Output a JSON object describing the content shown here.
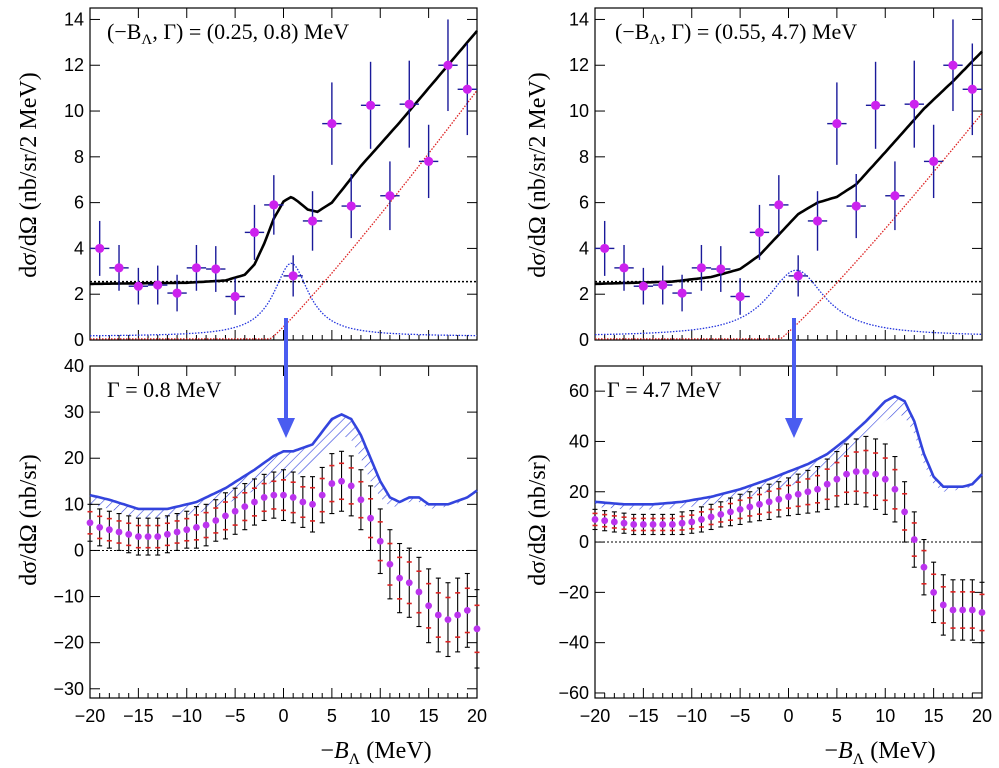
{
  "colors": {
    "data_point": "#cc22ee",
    "data_error": "#1a1a9a",
    "total_fit": "#000000",
    "background": "#000000",
    "peak": "#2233dd",
    "rising": "#dd2222",
    "hatch": "#3344dd",
    "arrow": "#4a5cf0",
    "subtracted_point": "#bb33ee",
    "subtracted_error": "#000000",
    "subtracted_band": "#dd2222"
  },
  "xlabel": {
    "prefix": "−",
    "var": "B",
    "sub": "Λ",
    "unit": " (MeV)"
  },
  "ylabel_top": "dσ/dΩ (nb/sr/2 MeV)",
  "ylabel_bottom": "dσ/dΩ (nb/sr)",
  "chart_data": [
    {
      "id": "top-left",
      "type": "scatter",
      "annotation": {
        "open": "(−B",
        "sub": "Λ",
        "close": ", Γ) = (0.25, 0.8) MeV"
      },
      "xlim": [
        -20,
        20
      ],
      "ylim": [
        0,
        14.5
      ],
      "xticks": [
        -20,
        -15,
        -10,
        -5,
        0,
        5,
        10,
        15,
        20
      ],
      "yticks": [
        0,
        2,
        4,
        6,
        8,
        10,
        12,
        14
      ],
      "points": [
        {
          "x": -19,
          "y": 4.0,
          "err": 1.2
        },
        {
          "x": -17,
          "y": 3.15,
          "err": 1.0
        },
        {
          "x": -15,
          "y": 2.35,
          "err": 0.8
        },
        {
          "x": -13,
          "y": 2.4,
          "err": 0.85
        },
        {
          "x": -11,
          "y": 2.05,
          "err": 0.8
        },
        {
          "x": -9,
          "y": 3.15,
          "err": 1.0
        },
        {
          "x": -7,
          "y": 3.1,
          "err": 1.0
        },
        {
          "x": -5,
          "y": 1.9,
          "err": 0.8
        },
        {
          "x": -3,
          "y": 4.7,
          "err": 1.2
        },
        {
          "x": -1,
          "y": 5.9,
          "err": 1.3
        },
        {
          "x": 1,
          "y": 2.8,
          "err": 0.9
        },
        {
          "x": 3,
          "y": 5.2,
          "err": 1.3
        },
        {
          "x": 5,
          "y": 9.45,
          "err": 1.8
        },
        {
          "x": 7,
          "y": 5.85,
          "err": 1.4
        },
        {
          "x": 9,
          "y": 10.25,
          "err": 1.9
        },
        {
          "x": 11,
          "y": 6.3,
          "err": 1.5
        },
        {
          "x": 13,
          "y": 10.3,
          "err": 1.9
        },
        {
          "x": 15,
          "y": 7.8,
          "err": 1.6
        },
        {
          "x": 17,
          "y": 12.0,
          "err": 2.0
        },
        {
          "x": 19,
          "y": 10.95,
          "err": 2.0
        }
      ],
      "background": 2.55,
      "peak": {
        "center": 0.8,
        "amplitude": 3.2,
        "width": 2.2
      },
      "rising": {
        "start": -1.5,
        "end_value": 10.9
      },
      "total_curve": [
        [
          -20,
          2.45
        ],
        [
          -10,
          2.5
        ],
        [
          -6,
          2.6
        ],
        [
          -4,
          2.85
        ],
        [
          -3,
          3.3
        ],
        [
          -2,
          4.2
        ],
        [
          -1,
          5.3
        ],
        [
          0,
          6.05
        ],
        [
          0.8,
          6.25
        ],
        [
          1.5,
          6.05
        ],
        [
          2.5,
          5.7
        ],
        [
          3.5,
          5.6
        ],
        [
          5,
          6.0
        ],
        [
          8,
          7.6
        ],
        [
          12,
          9.5
        ],
        [
          16,
          11.5
        ],
        [
          20,
          13.5
        ]
      ]
    },
    {
      "id": "top-right",
      "type": "scatter",
      "annotation": {
        "open": "(−B",
        "sub": "Λ",
        "close": ", Γ) = (0.55, 4.7) MeV"
      },
      "xlim": [
        -20,
        20
      ],
      "ylim": [
        0,
        14.5
      ],
      "xticks": [
        -20,
        -15,
        -10,
        -5,
        0,
        5,
        10,
        15,
        20
      ],
      "yticks": [
        0,
        2,
        4,
        6,
        8,
        10,
        12,
        14
      ],
      "points": [
        {
          "x": -19,
          "y": 4.0,
          "err": 1.2
        },
        {
          "x": -17,
          "y": 3.15,
          "err": 1.0
        },
        {
          "x": -15,
          "y": 2.35,
          "err": 0.8
        },
        {
          "x": -13,
          "y": 2.4,
          "err": 0.85
        },
        {
          "x": -11,
          "y": 2.05,
          "err": 0.8
        },
        {
          "x": -9,
          "y": 3.15,
          "err": 1.0
        },
        {
          "x": -7,
          "y": 3.1,
          "err": 1.0
        },
        {
          "x": -5,
          "y": 1.9,
          "err": 0.8
        },
        {
          "x": -3,
          "y": 4.7,
          "err": 1.2
        },
        {
          "x": -1,
          "y": 5.9,
          "err": 1.3
        },
        {
          "x": 1,
          "y": 2.8,
          "err": 0.9
        },
        {
          "x": 3,
          "y": 5.2,
          "err": 1.3
        },
        {
          "x": 5,
          "y": 9.45,
          "err": 1.8
        },
        {
          "x": 7,
          "y": 5.85,
          "err": 1.4
        },
        {
          "x": 9,
          "y": 10.25,
          "err": 1.9
        },
        {
          "x": 11,
          "y": 6.3,
          "err": 1.5
        },
        {
          "x": 13,
          "y": 10.3,
          "err": 1.9
        },
        {
          "x": 15,
          "y": 7.8,
          "err": 1.6
        },
        {
          "x": 17,
          "y": 12.0,
          "err": 2.0
        },
        {
          "x": 19,
          "y": 10.95,
          "err": 2.0
        }
      ],
      "background": 2.55,
      "peak": {
        "center": 0.8,
        "amplitude": 2.9,
        "width": 3.6
      },
      "rising": {
        "start": -1.0,
        "end_value": 9.9
      },
      "total_curve": [
        [
          -20,
          2.45
        ],
        [
          -12,
          2.55
        ],
        [
          -8,
          2.75
        ],
        [
          -5,
          3.1
        ],
        [
          -3,
          3.7
        ],
        [
          -1,
          4.6
        ],
        [
          1,
          5.5
        ],
        [
          3,
          6.0
        ],
        [
          5,
          6.25
        ],
        [
          7,
          6.8
        ],
        [
          10,
          8.2
        ],
        [
          14,
          10.1
        ],
        [
          17,
          11.3
        ],
        [
          20,
          12.6
        ]
      ]
    },
    {
      "id": "bottom-left",
      "type": "scatter",
      "annotation": {
        "text": "Γ = 0.8 MeV"
      },
      "xlim": [
        -20,
        20
      ],
      "ylim": [
        -32,
        40
      ],
      "xticks": [
        -20,
        -15,
        -10,
        -5,
        0,
        5,
        10,
        15,
        20
      ],
      "yticks": [
        -30,
        -20,
        -10,
        0,
        10,
        20,
        30,
        40
      ],
      "upper_curve": [
        [
          -20,
          12
        ],
        [
          -18,
          11
        ],
        [
          -15,
          9
        ],
        [
          -12,
          9
        ],
        [
          -9,
          10.5
        ],
        [
          -6,
          13.5
        ],
        [
          -3,
          17.5
        ],
        [
          -1,
          20.5
        ],
        [
          0,
          21.5
        ],
        [
          1,
          21.5
        ],
        [
          3,
          23
        ],
        [
          5,
          28.5
        ],
        [
          6,
          29.5
        ],
        [
          7,
          28.5
        ],
        [
          8,
          25
        ],
        [
          9,
          20
        ],
        [
          10,
          15
        ],
        [
          11,
          11.5
        ],
        [
          12,
          10.5
        ],
        [
          13,
          11.5
        ],
        [
          14,
          11.5
        ],
        [
          15,
          10
        ],
        [
          17,
          10
        ],
        [
          19,
          11.5
        ],
        [
          20,
          13
        ]
      ],
      "hatch_lower": [
        [
          -20,
          10
        ],
        [
          -18,
          9
        ],
        [
          -15,
          7
        ],
        [
          -12,
          7
        ],
        [
          -9,
          8
        ],
        [
          -6,
          10
        ],
        [
          -3,
          13
        ],
        [
          -1,
          15
        ],
        [
          0,
          15.5
        ],
        [
          1,
          16
        ],
        [
          3,
          18
        ],
        [
          5,
          23.5
        ],
        [
          6,
          25
        ],
        [
          7,
          24
        ],
        [
          8,
          20
        ],
        [
          9,
          15
        ],
        [
          10,
          11.5
        ],
        [
          11,
          9.5
        ],
        [
          12,
          9.5
        ],
        [
          13,
          10.5
        ],
        [
          14,
          10.5
        ],
        [
          15,
          9
        ],
        [
          17,
          9.5
        ],
        [
          19,
          11
        ],
        [
          20,
          12.5
        ]
      ],
      "points": [
        {
          "x": -20,
          "y": 6,
          "err": 4
        },
        {
          "x": -19,
          "y": 5,
          "err": 4
        },
        {
          "x": -18,
          "y": 4.5,
          "err": 4
        },
        {
          "x": -17,
          "y": 4,
          "err": 4
        },
        {
          "x": -16,
          "y": 3.5,
          "err": 4
        },
        {
          "x": -15,
          "y": 3,
          "err": 4
        },
        {
          "x": -14,
          "y": 3,
          "err": 4
        },
        {
          "x": -13,
          "y": 3,
          "err": 4
        },
        {
          "x": -12,
          "y": 3.5,
          "err": 4
        },
        {
          "x": -11,
          "y": 4,
          "err": 4
        },
        {
          "x": -10,
          "y": 4.5,
          "err": 4
        },
        {
          "x": -9,
          "y": 5,
          "err": 4.5
        },
        {
          "x": -8,
          "y": 5.5,
          "err": 4.5
        },
        {
          "x": -7,
          "y": 6.5,
          "err": 4.5
        },
        {
          "x": -6,
          "y": 7.5,
          "err": 5
        },
        {
          "x": -5,
          "y": 8.5,
          "err": 5
        },
        {
          "x": -4,
          "y": 9.5,
          "err": 5
        },
        {
          "x": -3,
          "y": 10.5,
          "err": 5
        },
        {
          "x": -2,
          "y": 11.5,
          "err": 5
        },
        {
          "x": -1,
          "y": 12,
          "err": 5
        },
        {
          "x": 0,
          "y": 12,
          "err": 5.5
        },
        {
          "x": 1,
          "y": 11.5,
          "err": 5.5
        },
        {
          "x": 2,
          "y": 10.5,
          "err": 5.5
        },
        {
          "x": 3,
          "y": 10,
          "err": 6
        },
        {
          "x": 4,
          "y": 12,
          "err": 6
        },
        {
          "x": 5,
          "y": 14.5,
          "err": 6.5
        },
        {
          "x": 6,
          "y": 15,
          "err": 6.5
        },
        {
          "x": 7,
          "y": 14,
          "err": 6.5
        },
        {
          "x": 8,
          "y": 11,
          "err": 6.5
        },
        {
          "x": 9,
          "y": 7,
          "err": 7
        },
        {
          "x": 10,
          "y": 2,
          "err": 7
        },
        {
          "x": 11,
          "y": -3,
          "err": 7.5
        },
        {
          "x": 12,
          "y": -6,
          "err": 7.5
        },
        {
          "x": 13,
          "y": -7,
          "err": 7.5
        },
        {
          "x": 14,
          "y": -9,
          "err": 7.5
        },
        {
          "x": 15,
          "y": -12,
          "err": 8
        },
        {
          "x": 16,
          "y": -14,
          "err": 8
        },
        {
          "x": 17,
          "y": -15,
          "err": 8
        },
        {
          "x": 18,
          "y": -14,
          "err": 8
        },
        {
          "x": 19,
          "y": -13,
          "err": 8
        },
        {
          "x": 20,
          "y": -17,
          "err": 8.5
        }
      ]
    },
    {
      "id": "bottom-right",
      "type": "scatter",
      "annotation": {
        "text": "Γ = 4.7 MeV"
      },
      "xlim": [
        -20,
        20
      ],
      "ylim": [
        -62,
        70
      ],
      "xticks": [
        -20,
        -15,
        -10,
        -5,
        0,
        5,
        10,
        15,
        20
      ],
      "yticks": [
        -60,
        -40,
        -20,
        0,
        20,
        40,
        60
      ],
      "upper_curve": [
        [
          -20,
          16
        ],
        [
          -17,
          15
        ],
        [
          -14,
          15
        ],
        [
          -11,
          16
        ],
        [
          -8,
          18
        ],
        [
          -5,
          21
        ],
        [
          -2,
          25
        ],
        [
          0,
          28
        ],
        [
          2,
          31
        ],
        [
          4,
          35
        ],
        [
          6,
          41
        ],
        [
          8,
          48
        ],
        [
          10,
          56
        ],
        [
          11,
          58
        ],
        [
          12,
          56
        ],
        [
          13,
          48
        ],
        [
          14,
          35
        ],
        [
          15,
          26
        ],
        [
          16,
          22
        ],
        [
          18,
          22
        ],
        [
          19,
          23
        ],
        [
          20,
          27
        ]
      ],
      "hatch_lower": [
        [
          -20,
          14
        ],
        [
          -17,
          13
        ],
        [
          -14,
          13
        ],
        [
          -11,
          13.5
        ],
        [
          -8,
          15
        ],
        [
          -5,
          17
        ],
        [
          -2,
          20
        ],
        [
          0,
          22
        ],
        [
          2,
          25
        ],
        [
          4,
          29
        ],
        [
          6,
          34
        ],
        [
          8,
          41
        ],
        [
          10,
          48
        ],
        [
          11,
          51
        ],
        [
          12,
          50
        ],
        [
          13,
          43
        ],
        [
          14,
          31
        ],
        [
          15,
          23
        ],
        [
          16,
          20
        ],
        [
          18,
          21
        ],
        [
          19,
          22
        ],
        [
          20,
          26
        ]
      ],
      "points": [
        {
          "x": -20,
          "y": 9,
          "err": 4
        },
        {
          "x": -19,
          "y": 8.5,
          "err": 4
        },
        {
          "x": -18,
          "y": 8,
          "err": 4
        },
        {
          "x": -17,
          "y": 7.5,
          "err": 4
        },
        {
          "x": -16,
          "y": 7,
          "err": 4
        },
        {
          "x": -15,
          "y": 7,
          "err": 4
        },
        {
          "x": -14,
          "y": 7,
          "err": 4
        },
        {
          "x": -13,
          "y": 7,
          "err": 4
        },
        {
          "x": -12,
          "y": 7,
          "err": 4
        },
        {
          "x": -11,
          "y": 7.5,
          "err": 4.5
        },
        {
          "x": -10,
          "y": 8,
          "err": 4.5
        },
        {
          "x": -9,
          "y": 9,
          "err": 5
        },
        {
          "x": -8,
          "y": 10,
          "err": 5
        },
        {
          "x": -7,
          "y": 11,
          "err": 5
        },
        {
          "x": -6,
          "y": 12,
          "err": 5.5
        },
        {
          "x": -5,
          "y": 13,
          "err": 6
        },
        {
          "x": -4,
          "y": 14,
          "err": 6
        },
        {
          "x": -3,
          "y": 15,
          "err": 6.5
        },
        {
          "x": -2,
          "y": 16,
          "err": 7
        },
        {
          "x": -1,
          "y": 17,
          "err": 7
        },
        {
          "x": 0,
          "y": 18,
          "err": 7.5
        },
        {
          "x": 1,
          "y": 19,
          "err": 8
        },
        {
          "x": 2,
          "y": 20,
          "err": 8.5
        },
        {
          "x": 3,
          "y": 21,
          "err": 9
        },
        {
          "x": 4,
          "y": 23,
          "err": 10
        },
        {
          "x": 5,
          "y": 25,
          "err": 11
        },
        {
          "x": 6,
          "y": 27,
          "err": 12
        },
        {
          "x": 7,
          "y": 28,
          "err": 13
        },
        {
          "x": 8,
          "y": 28,
          "err": 14
        },
        {
          "x": 9,
          "y": 27,
          "err": 14
        },
        {
          "x": 10,
          "y": 25,
          "err": 14
        },
        {
          "x": 11,
          "y": 21,
          "err": 13
        },
        {
          "x": 12,
          "y": 12,
          "err": 12
        },
        {
          "x": 13,
          "y": 1,
          "err": 11
        },
        {
          "x": 14,
          "y": -10,
          "err": 11
        },
        {
          "x": 15,
          "y": -20,
          "err": 12
        },
        {
          "x": 16,
          "y": -25,
          "err": 12
        },
        {
          "x": 17,
          "y": -27,
          "err": 12
        },
        {
          "x": 18,
          "y": -27,
          "err": 12
        },
        {
          "x": 19,
          "y": -27,
          "err": 12
        },
        {
          "x": 20,
          "y": -28,
          "err": 12
        }
      ]
    }
  ]
}
